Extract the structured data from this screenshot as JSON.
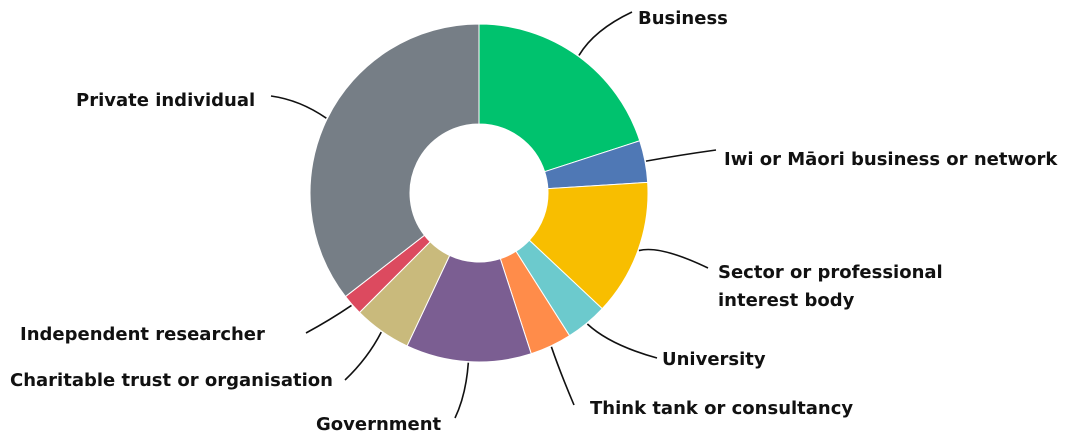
{
  "chart_data": {
    "type": "pie",
    "variant": "donut",
    "title": "",
    "categories": [
      "Business",
      "Iwi or Māori business or network",
      "Sector or professional interest body",
      "University",
      "Think tank or consultancy",
      "Government",
      "Charitable trust or organisation",
      "Independent researcher",
      "Private individual"
    ],
    "values": [
      20,
      4,
      13,
      4,
      4,
      12,
      5.5,
      2,
      35.5
    ],
    "colors": [
      "#00c26e",
      "#4f78b5",
      "#f8be00",
      "#6ccacd",
      "#ff8c4a",
      "#7b5e92",
      "#c9ba7c",
      "#dc4a5f",
      "#767e86"
    ],
    "labels": [
      [
        "Business"
      ],
      [
        "Iwi or Māori business or network"
      ],
      [
        "Sector or professional",
        "interest body"
      ],
      [
        "University"
      ],
      [
        "Think tank or consultancy"
      ],
      [
        "Government"
      ],
      [
        "Charitable trust or organisation"
      ],
      [
        "Independent researcher"
      ],
      [
        "Private individual"
      ]
    ],
    "legend": "none (leader-line labels)",
    "start_angle": "12 o'clock",
    "direction": "clockwise"
  }
}
